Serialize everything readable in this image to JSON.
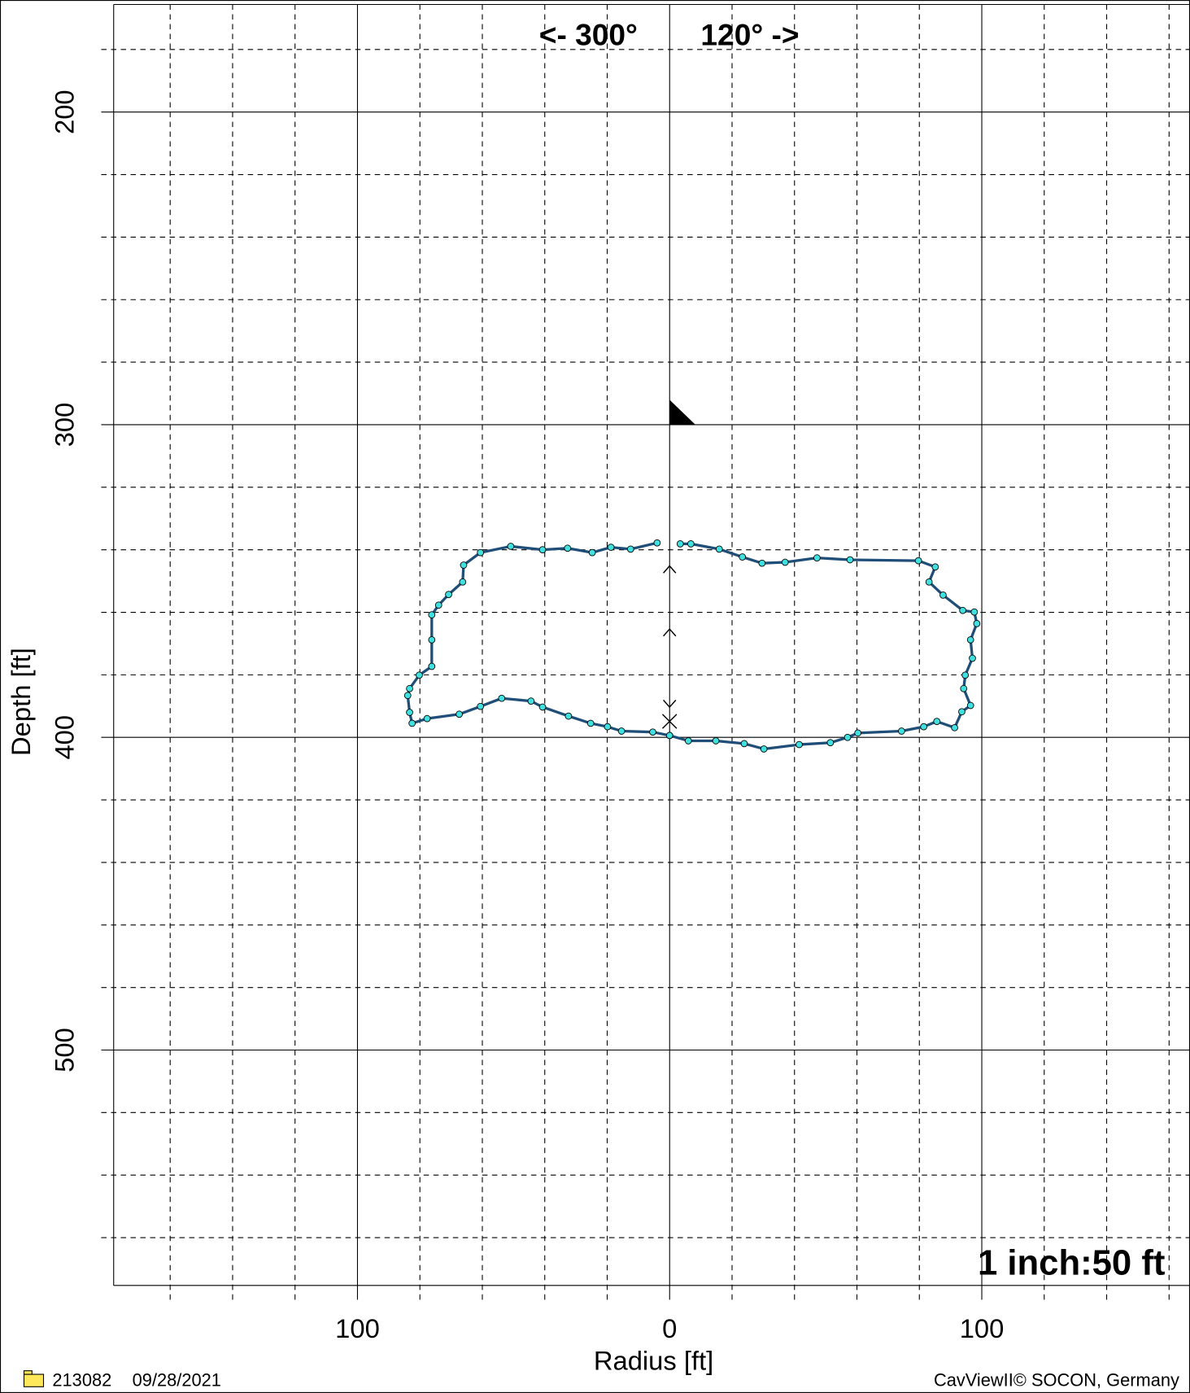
{
  "chart_data": {
    "type": "profile",
    "annotations": [
      "<- 300°",
      "120° ->",
      "1 inch:50 ft"
    ],
    "xlabel": "Radius [ft]",
    "ylabel": "Depth [ft]",
    "footer": {
      "id": "213082",
      "date": "09/28/2021",
      "credit": "CavViewII© SOCON, Germany"
    },
    "xlim": [
      -178.1,
      166.7
    ],
    "ylim": [
      165.6,
      575.3
    ],
    "xticks": [
      {
        "value": -100,
        "label": "100"
      },
      0,
      100
    ],
    "yticks": [
      200,
      300,
      400,
      500
    ],
    "xminor": [
      -160,
      -140,
      -120,
      -80,
      -60,
      -40,
      -20,
      20,
      40,
      60,
      80,
      120,
      140,
      160
    ],
    "yminor": [
      180,
      220,
      240,
      260,
      280,
      320,
      340,
      360,
      380,
      420,
      440,
      460,
      480,
      520,
      540,
      560
    ],
    "line_color": "#1f4e79",
    "marker_color": "#40e0e0",
    "series": [
      {
        "x": [
          -4,
          -12.5,
          -18.8,
          -24.8,
          -32.7,
          -40.7,
          -50.9,
          -60.6,
          -66,
          -66.3,
          -70.8,
          -74,
          -76.2,
          -76.2,
          -76.2,
          -80.2,
          -83.3,
          -83.9,
          -83.3,
          -82.5,
          -77.7,
          -67.4,
          -60.6,
          -53.8,
          -44.4,
          -40.7,
          -32.4,
          -25.3,
          -19.9,
          -15.4,
          -5.4,
          0
        ],
        "values": [
          337.8,
          339.8,
          339.2,
          340.9,
          339.5,
          340,
          338.9,
          340.9,
          344.9,
          350.3,
          354.3,
          357.7,
          360.8,
          368.8,
          377.3,
          380.1,
          384.4,
          386.6,
          392,
          395.5,
          394,
          392.6,
          390.1,
          387.5,
          388.4,
          390.3,
          393.2,
          395.5,
          396.6,
          398,
          398.3,
          399.4
        ]
      },
      {
        "x": [
          0,
          6,
          14.8,
          23.9,
          30.2,
          41.5,
          51.5,
          57,
          60.3,
          74.3,
          81.4,
          85.6,
          91.3,
          93.6,
          96.4,
          94.2,
          94.7,
          97,
          96.4,
          98.4,
          97.6,
          93.9,
          87.6,
          83.1,
          85.1,
          79.7,
          57.8,
          47.2,
          37,
          29.6,
          23.3,
          15.9,
          6.8,
          3.4
        ],
        "values": [
          399.4,
          401.1,
          401.1,
          402,
          403.7,
          402.3,
          401.7,
          400,
          398.6,
          398,
          396.6,
          394.9,
          396.9,
          391.8,
          389.8,
          384.4,
          380.1,
          374.7,
          368.8,
          363.6,
          359.9,
          359.4,
          354.5,
          350.3,
          345.5,
          343.5,
          343.2,
          342.6,
          344,
          344.3,
          342.3,
          339.8,
          338.1,
          338.1
        ]
      }
    ]
  }
}
